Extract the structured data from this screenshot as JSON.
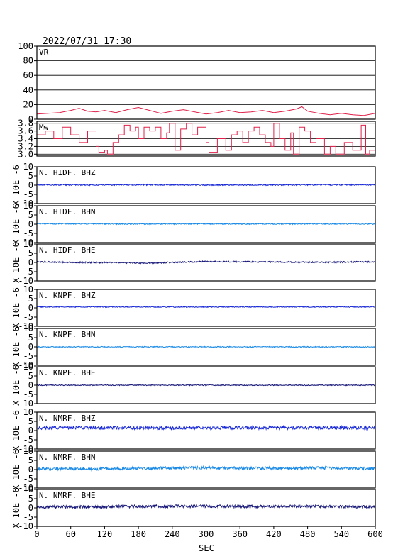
{
  "timestamp": "2022/07/31  17:30",
  "xlabel": "SEC",
  "chart_data": [
    {
      "type": "line",
      "label": "VR",
      "xlim": [
        0,
        600
      ],
      "ylim": [
        0,
        100
      ],
      "yticks": [
        0,
        20,
        40,
        60,
        80,
        100
      ],
      "grid": true,
      "color": "#e0204a",
      "series": [
        {
          "x": [
            0,
            20,
            40,
            60,
            75,
            90,
            105,
            120,
            140,
            160,
            180,
            200,
            220,
            240,
            260,
            280,
            300,
            320,
            340,
            360,
            380,
            400,
            420,
            440,
            460,
            470,
            480,
            500,
            520,
            540,
            560,
            580,
            600
          ],
          "values": [
            7,
            8,
            9,
            12,
            15,
            11,
            10,
            12,
            9,
            13,
            16,
            12,
            8,
            11,
            13,
            10,
            7,
            9,
            12,
            9,
            10,
            12,
            9,
            11,
            14,
            17,
            11,
            8,
            6,
            8,
            6,
            5,
            8
          ]
        }
      ]
    },
    {
      "type": "line",
      "label": "Mw",
      "xlim": [
        0,
        600
      ],
      "ylim": [
        2.95,
        3.85
      ],
      "yticks": [
        3.0,
        3.2,
        3.4,
        3.6,
        3.8
      ],
      "ytick_labels": [
        "3.0",
        "3.2",
        "3.4",
        "3.6",
        "3.8"
      ],
      "grid": true,
      "color": "#e0204a",
      "series": [
        {
          "x": [
            0,
            15,
            30,
            45,
            60,
            75,
            90,
            105,
            110,
            120,
            125,
            135,
            145,
            155,
            165,
            175,
            180,
            190,
            200,
            210,
            220,
            230,
            235,
            245,
            255,
            265,
            275,
            285,
            300,
            305,
            320,
            335,
            345,
            355,
            365,
            375,
            385,
            395,
            405,
            415,
            420,
            430,
            440,
            450,
            455,
            465,
            475,
            485,
            495,
            510,
            520,
            530,
            545,
            560,
            575,
            583,
            590,
            600
          ],
          "values": [
            3.5,
            3.6,
            3.4,
            3.7,
            3.5,
            3.3,
            3.6,
            3.2,
            3.05,
            3.1,
            3.0,
            3.3,
            3.5,
            3.75,
            3.6,
            3.7,
            3.4,
            3.7,
            3.6,
            3.7,
            3.4,
            3.55,
            3.8,
            3.1,
            3.65,
            3.8,
            3.5,
            3.7,
            3.3,
            3.05,
            3.4,
            3.1,
            3.5,
            3.6,
            3.3,
            3.6,
            3.7,
            3.5,
            3.3,
            3.2,
            3.8,
            3.4,
            3.1,
            3.55,
            3.0,
            3.7,
            3.6,
            3.3,
            3.4,
            3.0,
            3.2,
            3.0,
            3.3,
            3.1,
            3.75,
            3.0,
            3.1,
            3.1
          ]
        }
      ]
    },
    {
      "type": "line",
      "label": "N. HIDF. BHZ",
      "xlim": [
        0,
        600
      ],
      "ylim": [
        -10,
        10
      ],
      "yticks": [
        -10,
        -5,
        0,
        5,
        10
      ],
      "ylabel": "X 10E -6",
      "color": "#1a2ad6",
      "series": [
        {
          "x": [
            0,
            100,
            200,
            300,
            400,
            500,
            600
          ],
          "values": [
            0.2,
            0.1,
            0.2,
            0.1,
            0.1,
            0.2,
            0.2
          ],
          "noise": 0.3
        }
      ]
    },
    {
      "type": "line",
      "label": "N. HIDF. BHN",
      "xlim": [
        0,
        600
      ],
      "ylim": [
        -10,
        10
      ],
      "yticks": [
        -10,
        -5,
        0,
        5,
        10
      ],
      "ylabel": "X 10E -6",
      "color": "#1a8ae6",
      "series": [
        {
          "x": [
            0,
            100,
            200,
            300,
            400,
            500,
            600
          ],
          "values": [
            0.3,
            0.2,
            0.1,
            0.2,
            0.1,
            0.2,
            0.1
          ],
          "noise": 0.3
        }
      ]
    },
    {
      "type": "line",
      "label": "N. HIDF. BHE",
      "xlim": [
        0,
        600
      ],
      "ylim": [
        -10,
        10
      ],
      "yticks": [
        -10,
        -5,
        0,
        5,
        10
      ],
      "ylabel": "X 10E -6",
      "color": "#1a1a7a",
      "series": [
        {
          "x": [
            0,
            100,
            200,
            300,
            400,
            500,
            600
          ],
          "values": [
            0.3,
            0.0,
            -0.3,
            0.5,
            0.3,
            0.1,
            0.4
          ],
          "noise": 0.35
        }
      ]
    },
    {
      "type": "line",
      "label": "N. KNPF. BHZ",
      "xlim": [
        0,
        600
      ],
      "ylim": [
        -10,
        10
      ],
      "yticks": [
        -10,
        -5,
        0,
        5,
        10
      ],
      "ylabel": "X 10E -6",
      "color": "#1a2ad6",
      "series": [
        {
          "x": [
            0,
            100,
            200,
            300,
            400,
            500,
            600
          ],
          "values": [
            0.5,
            0.5,
            0.5,
            0.5,
            0.5,
            0.5,
            0.5
          ],
          "noise": 0.25
        }
      ]
    },
    {
      "type": "line",
      "label": "N. KNPF. BHN",
      "xlim": [
        0,
        600
      ],
      "ylim": [
        -10,
        10
      ],
      "yticks": [
        -10,
        -5,
        0,
        5,
        10
      ],
      "ylabel": "X 10E -6",
      "color": "#1a8ae6",
      "series": [
        {
          "x": [
            0,
            100,
            200,
            300,
            400,
            500,
            600
          ],
          "values": [
            0.0,
            0.0,
            0.0,
            0.0,
            0.0,
            0.0,
            0.0
          ],
          "noise": 0.25
        }
      ]
    },
    {
      "type": "line",
      "label": "N. KNPF. BHE",
      "xlim": [
        0,
        600
      ],
      "ylim": [
        -10,
        10
      ],
      "yticks": [
        -10,
        -5,
        0,
        5,
        10
      ],
      "ylabel": "X 10E -6",
      "color": "#1a1a7a",
      "series": [
        {
          "x": [
            0,
            100,
            200,
            300,
            400,
            500,
            600
          ],
          "values": [
            0.0,
            0.0,
            0.0,
            0.0,
            0.0,
            0.0,
            0.0
          ],
          "noise": 0.25
        }
      ]
    },
    {
      "type": "line",
      "label": "N. NMRF. BHZ",
      "xlim": [
        0,
        600
      ],
      "ylim": [
        -10,
        10
      ],
      "yticks": [
        -10,
        -5,
        0,
        5,
        10
      ],
      "ylabel": "X 10E -6",
      "color": "#1a2ad6",
      "series": [
        {
          "x": [
            0,
            100,
            200,
            300,
            400,
            500,
            600
          ],
          "values": [
            1.5,
            1.5,
            1.4,
            1.5,
            1.5,
            1.6,
            1.5
          ],
          "noise": 0.9
        }
      ]
    },
    {
      "type": "line",
      "label": "N. NMRF. BHN",
      "xlim": [
        0,
        600
      ],
      "ylim": [
        -10,
        10
      ],
      "yticks": [
        -10,
        -5,
        0,
        5,
        10
      ],
      "ylabel": "X 10E -6",
      "color": "#1a8ae6",
      "series": [
        {
          "x": [
            0,
            100,
            200,
            300,
            400,
            500,
            600
          ],
          "values": [
            0.5,
            0.3,
            0.8,
            1.0,
            0.7,
            0.9,
            0.6
          ],
          "noise": 0.8
        }
      ]
    },
    {
      "type": "line",
      "label": "N. NMRF. BHE",
      "xlim": [
        0,
        600
      ],
      "ylim": [
        -10,
        10
      ],
      "yticks": [
        -10,
        -5,
        0,
        5,
        10
      ],
      "ylabel": "X 10E -6",
      "color": "#1a1a7a",
      "series": [
        {
          "x": [
            0,
            100,
            200,
            300,
            400,
            500,
            600
          ],
          "values": [
            0.5,
            0.6,
            0.8,
            0.9,
            0.7,
            0.8,
            0.6
          ],
          "noise": 0.8
        }
      ]
    }
  ],
  "xticks": [
    0,
    60,
    120,
    180,
    240,
    300,
    360,
    420,
    480,
    540,
    600
  ]
}
